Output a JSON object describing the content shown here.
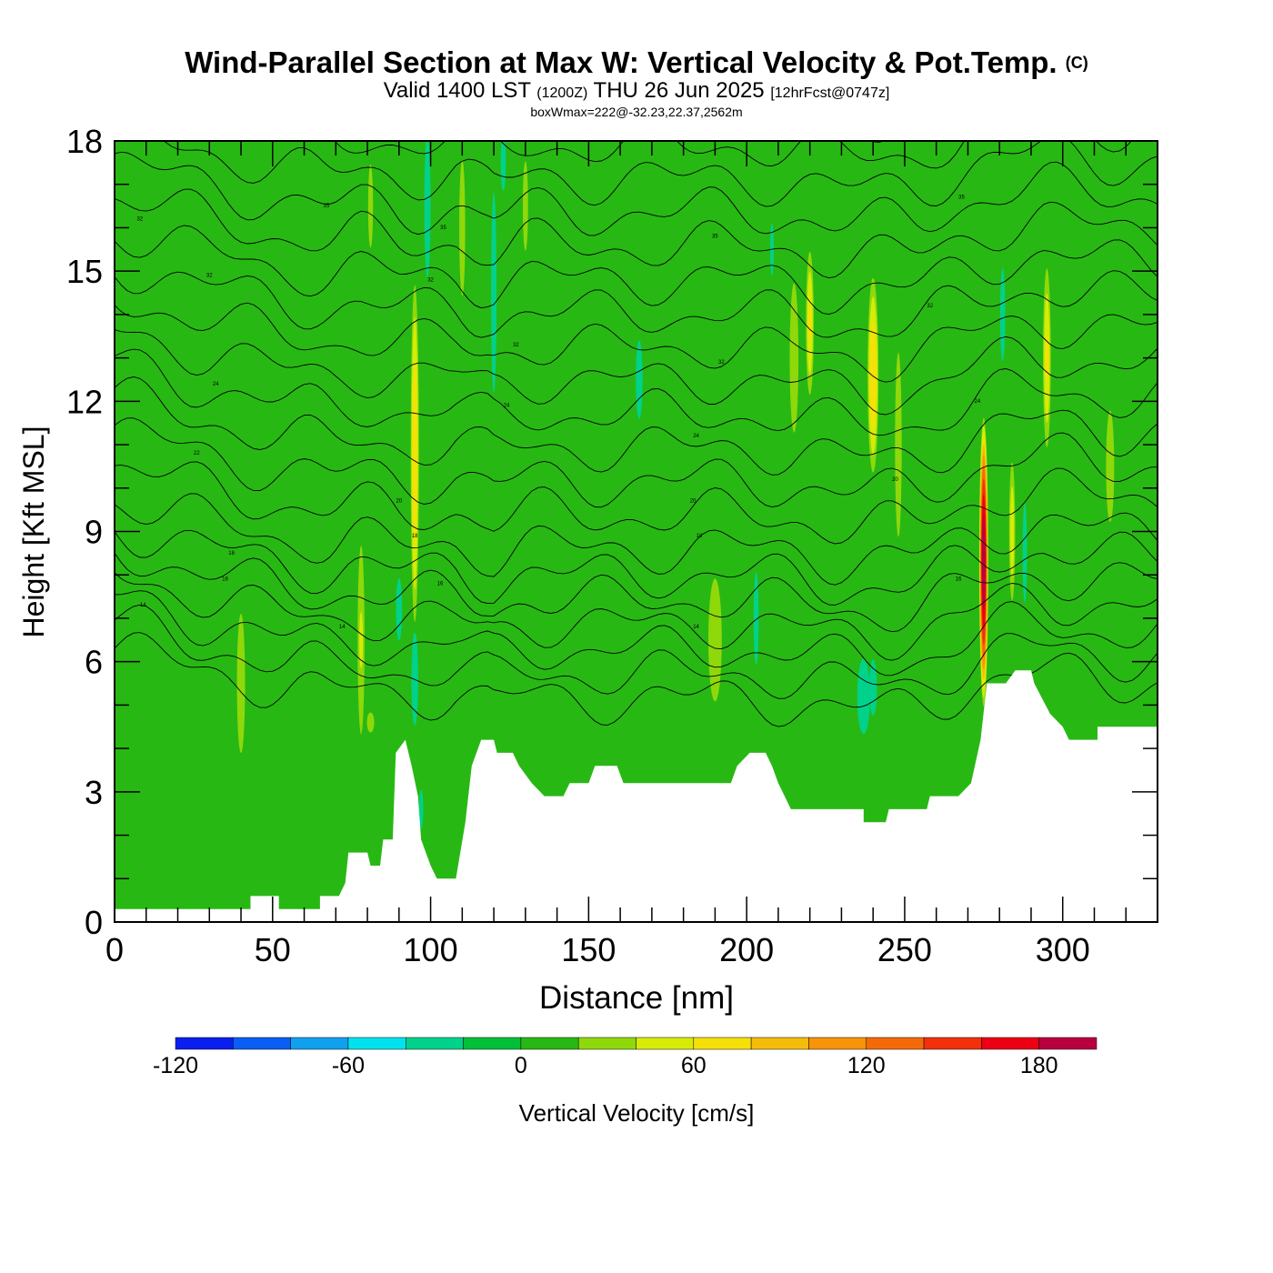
{
  "header": {
    "title": "Wind-Parallel Section at Max W: Vertical Velocity & Pot.Temp.",
    "title_tag": "(C)",
    "valid_prefix": "Valid 1400 LST",
    "valid_utc": "(1200Z)",
    "valid_date": "THU 26 Jun 2025",
    "valid_fcst": "[12hrFcst@0747z]",
    "info": "boxWmax=222@-32.23,22.37,2562m"
  },
  "colorbar": {
    "label": "Vertical Velocity [cm/s]",
    "levels": [
      -120,
      -100,
      -80,
      -60,
      -40,
      -20,
      0,
      20,
      40,
      60,
      80,
      100,
      120,
      140,
      160,
      180,
      200
    ],
    "tick_labels": [
      "-120",
      "-60",
      "0",
      "60",
      "120",
      "180"
    ],
    "colors": [
      "#0b1ef0",
      "#0a5ef5",
      "#10a0f0",
      "#00e3ee",
      "#00d28c",
      "#00c03a",
      "#28b814",
      "#8fd80a",
      "#d6ec06",
      "#f6e008",
      "#f6bc0a",
      "#f79408",
      "#f56a08",
      "#f2300c",
      "#ee0014",
      "#b80040"
    ]
  },
  "chart_data": {
    "type": "heatmap",
    "title": "Wind-Parallel Section at Max W: Vertical Velocity & Pot.Temp.",
    "xlabel": "Distance [nm]",
    "ylabel": "Height [Kft MSL]",
    "xlim": [
      0,
      330
    ],
    "ylim": [
      0,
      18
    ],
    "x_ticks": [
      0,
      50,
      100,
      150,
      200,
      250,
      300
    ],
    "x_tick_labels": [
      "0",
      "50",
      "100",
      "150",
      "200",
      "250",
      "300"
    ],
    "y_ticks": [
      0,
      3,
      6,
      9,
      12,
      15,
      18
    ],
    "y_tick_labels": [
      "0",
      "3",
      "6",
      "9",
      "12",
      "15",
      "18"
    ],
    "background_w": 10,
    "terrain": [
      [
        0,
        0.3
      ],
      [
        43,
        0.3
      ],
      [
        43,
        0.6
      ],
      [
        52,
        0.6
      ],
      [
        52,
        0.3
      ],
      [
        65,
        0.3
      ],
      [
        65,
        0.6
      ],
      [
        71,
        0.6
      ],
      [
        73,
        0.9
      ],
      [
        74,
        1.6
      ],
      [
        80,
        1.6
      ],
      [
        81,
        1.3
      ],
      [
        84,
        1.3
      ],
      [
        85,
        1.9
      ],
      [
        88,
        1.9
      ],
      [
        89,
        3.9
      ],
      [
        92,
        4.2
      ],
      [
        94,
        3.6
      ],
      [
        96,
        2.9
      ],
      [
        97,
        1.9
      ],
      [
        100,
        1.3
      ],
      [
        102,
        1.0
      ],
      [
        108,
        1.0
      ],
      [
        111,
        2.3
      ],
      [
        113,
        3.6
      ],
      [
        116,
        4.2
      ],
      [
        120,
        4.2
      ],
      [
        121,
        3.9
      ],
      [
        126,
        3.9
      ],
      [
        128,
        3.6
      ],
      [
        132,
        3.2
      ],
      [
        136,
        2.9
      ],
      [
        142,
        2.9
      ],
      [
        144,
        3.2
      ],
      [
        150,
        3.2
      ],
      [
        152,
        3.6
      ],
      [
        159,
        3.6
      ],
      [
        161,
        3.2
      ],
      [
        186,
        3.2
      ],
      [
        195,
        3.2
      ],
      [
        197,
        3.6
      ],
      [
        201,
        3.9
      ],
      [
        206,
        3.9
      ],
      [
        208,
        3.6
      ],
      [
        210,
        3.2
      ],
      [
        212,
        2.9
      ],
      [
        214,
        2.6
      ],
      [
        237,
        2.6
      ],
      [
        237,
        2.3
      ],
      [
        244,
        2.3
      ],
      [
        245,
        2.6
      ],
      [
        257,
        2.6
      ],
      [
        258,
        2.9
      ],
      [
        267,
        2.9
      ],
      [
        271,
        3.2
      ],
      [
        274,
        4.2
      ],
      [
        276,
        5.5
      ],
      [
        282,
        5.5
      ],
      [
        285,
        5.8
      ],
      [
        290,
        5.8
      ],
      [
        291,
        5.5
      ],
      [
        296,
        4.8
      ],
      [
        300,
        4.5
      ],
      [
        302,
        4.2
      ],
      [
        311,
        4.2
      ],
      [
        311,
        4.5
      ],
      [
        323,
        4.5
      ],
      [
        330,
        4.5
      ]
    ],
    "w_features": [
      {
        "x": 5,
        "z": 9.5,
        "sx": 3,
        "sz": 2.5,
        "w": 16
      },
      {
        "x": 22,
        "z": 3.2,
        "sx": 1.5,
        "sz": 0.5,
        "w": -14
      },
      {
        "x": 40,
        "z": 5.5,
        "sx": 2,
        "sz": 2.5,
        "w": 34
      },
      {
        "x": 78,
        "z": 6.5,
        "sx": 1.5,
        "sz": 3,
        "w": 42
      },
      {
        "x": 81,
        "z": 4.6,
        "sx": 2,
        "sz": 0.4,
        "w": 30
      },
      {
        "x": 81,
        "z": 16.5,
        "sx": 1.2,
        "sz": 1.5,
        "w": 34
      },
      {
        "x": 90,
        "z": 7.2,
        "sx": 2,
        "sz": 1.5,
        "w": -26
      },
      {
        "x": 95,
        "z": 10.8,
        "sx": 1.5,
        "sz": 4.5,
        "w": 78
      },
      {
        "x": 95,
        "z": 5.6,
        "sx": 1.3,
        "sz": 1.3,
        "w": -62
      },
      {
        "x": 99,
        "z": 16.5,
        "sx": 1.2,
        "sz": 2,
        "w": -62
      },
      {
        "x": 97,
        "z": 2.6,
        "sx": 1.5,
        "sz": 1,
        "w": -25
      },
      {
        "x": 110,
        "z": 16,
        "sx": 1.5,
        "sz": 2.5,
        "w": 33
      },
      {
        "x": 120,
        "z": 14.5,
        "sx": 1.5,
        "sz": 4,
        "w": -30
      },
      {
        "x": 123,
        "z": 17.5,
        "sx": 1,
        "sz": 0.8,
        "w": -58
      },
      {
        "x": 130,
        "z": 16.5,
        "sx": 1.2,
        "sz": 1.5,
        "w": 38
      },
      {
        "x": 166,
        "z": 12.5,
        "sx": 3,
        "sz": 2.5,
        "w": -23
      },
      {
        "x": 190,
        "z": 6.5,
        "sx": 3,
        "sz": 2,
        "w": 40
      },
      {
        "x": 203,
        "z": 7,
        "sx": 1.5,
        "sz": 2,
        "w": -28
      },
      {
        "x": 208,
        "z": 15.5,
        "sx": 1.5,
        "sz": 2,
        "w": -22
      },
      {
        "x": 215,
        "z": 13,
        "sx": 2,
        "sz": 2.5,
        "w": 38
      },
      {
        "x": 220,
        "z": 13.8,
        "sx": 1.5,
        "sz": 2,
        "w": 62
      },
      {
        "x": 237,
        "z": 5.2,
        "sx": 3.5,
        "sz": 1.5,
        "w": -30
      },
      {
        "x": 240,
        "z": 5.4,
        "sx": 1.5,
        "sz": 0.8,
        "w": -58
      },
      {
        "x": 240,
        "z": 12.6,
        "sx": 2,
        "sz": 2.6,
        "w": 78
      },
      {
        "x": 248,
        "z": 11,
        "sx": 1.5,
        "sz": 3,
        "w": 40
      },
      {
        "x": 275,
        "z": 8.3,
        "sx": 1.5,
        "sz": 3.5,
        "w": 200
      },
      {
        "x": 281,
        "z": 14,
        "sx": 1.5,
        "sz": 2,
        "w": -28
      },
      {
        "x": 284,
        "z": 9,
        "sx": 1.2,
        "sz": 2,
        "w": 55
      },
      {
        "x": 288,
        "z": 8.5,
        "sx": 1.2,
        "sz": 2,
        "w": -30
      },
      {
        "x": 295,
        "z": 13,
        "sx": 1.5,
        "sz": 2.5,
        "w": 62
      },
      {
        "x": 315,
        "z": 10.5,
        "sx": 2,
        "sz": 2,
        "w": 34
      }
    ],
    "theta_levels": [
      306,
      308,
      310,
      312,
      314,
      316,
      318,
      320,
      322,
      324,
      326,
      328,
      330,
      332,
      334,
      336,
      338,
      340,
      342,
      344,
      346,
      348,
      350
    ],
    "theta_labels": [
      {
        "x": 8,
        "z": 16.2,
        "text": "32"
      },
      {
        "x": 67,
        "z": 16.5,
        "text": "35"
      },
      {
        "x": 104,
        "z": 16.0,
        "text": "35"
      },
      {
        "x": 190,
        "z": 15.8,
        "text": "35"
      },
      {
        "x": 268,
        "z": 16.7,
        "text": "35"
      },
      {
        "x": 30,
        "z": 14.9,
        "text": "32"
      },
      {
        "x": 100,
        "z": 14.8,
        "text": "32"
      },
      {
        "x": 127,
        "z": 13.3,
        "text": "32"
      },
      {
        "x": 192,
        "z": 12.9,
        "text": "32"
      },
      {
        "x": 258,
        "z": 14.2,
        "text": "32"
      },
      {
        "x": 32,
        "z": 12.4,
        "text": "24"
      },
      {
        "x": 124,
        "z": 11.9,
        "text": "24"
      },
      {
        "x": 184,
        "z": 11.2,
        "text": "24"
      },
      {
        "x": 273,
        "z": 12,
        "text": "24"
      },
      {
        "x": 26,
        "z": 10.8,
        "text": "22"
      },
      {
        "x": 90,
        "z": 9.7,
        "text": "20"
      },
      {
        "x": 183,
        "z": 9.7,
        "text": "20"
      },
      {
        "x": 247,
        "z": 10.2,
        "text": "20"
      },
      {
        "x": 37,
        "z": 8.5,
        "text": "18"
      },
      {
        "x": 95,
        "z": 8.9,
        "text": "18"
      },
      {
        "x": 185,
        "z": 8.9,
        "text": "18"
      },
      {
        "x": 35,
        "z": 7.9,
        "text": "16"
      },
      {
        "x": 103,
        "z": 7.8,
        "text": "16"
      },
      {
        "x": 267,
        "z": 7.9,
        "text": "16"
      },
      {
        "x": 9,
        "z": 7.3,
        "text": "14"
      },
      {
        "x": 72,
        "z": 6.8,
        "text": "14"
      },
      {
        "x": 184,
        "z": 6.8,
        "text": "14"
      }
    ]
  }
}
